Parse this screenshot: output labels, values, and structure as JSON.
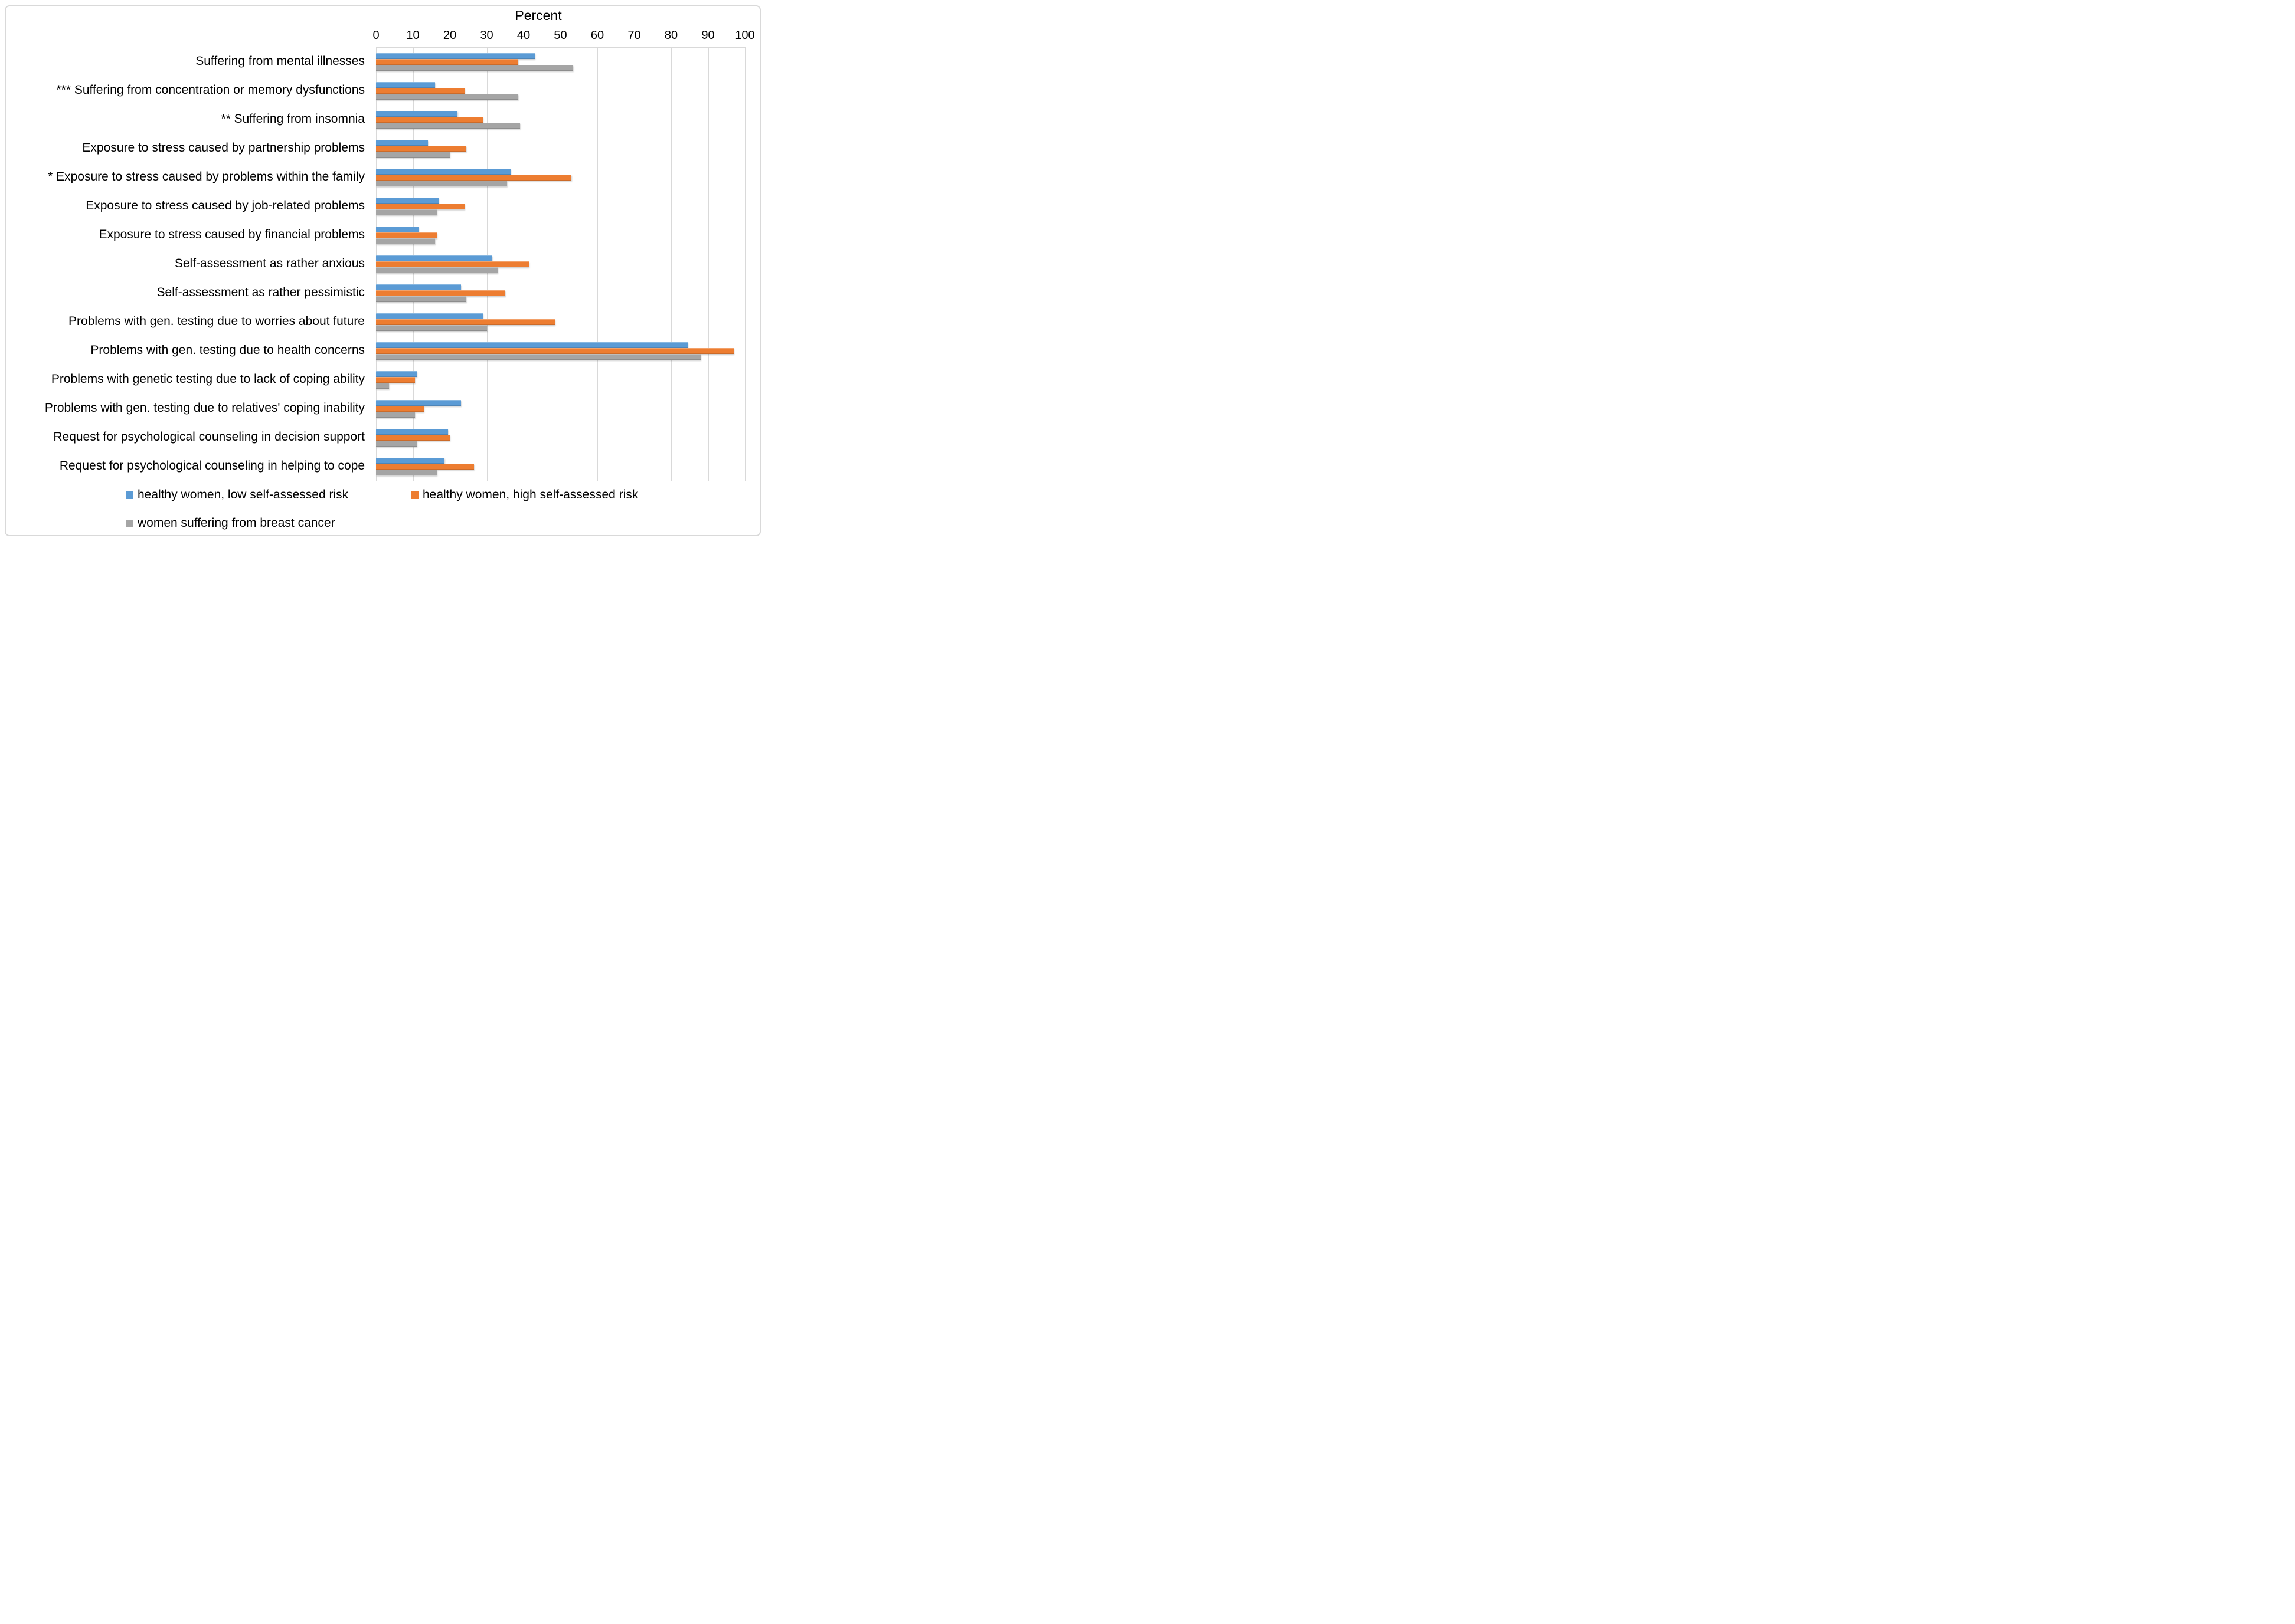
{
  "chart_data": {
    "type": "bar",
    "orientation": "horizontal",
    "axis": {
      "label": "Percent",
      "position": "top",
      "min": 0,
      "max": 100,
      "tick_step": 10,
      "tick_labels": [
        "0",
        "10",
        "20",
        "30",
        "40",
        "50",
        "60",
        "70",
        "80",
        "90",
        "100"
      ]
    },
    "grid": true,
    "gridline_color": "#D9D9D9",
    "background": "#FFFFFF",
    "legend_position": "bottom",
    "categories": [
      "Suffering from mental illnesses",
      "*** Suffering from concentration or memory dysfunctions",
      "** Suffering from  insomnia",
      "Exposure to stress caused by partnership problems",
      "* Exposure to stress caused by problems within the family",
      "Exposure to stress caused by job-related problems",
      "Exposure to stress caused by financial problems",
      "Self-assessment as rather anxious",
      "Self-assessment as rather pessimistic",
      "Problems with gen. testing due to worries about future",
      "Problems with gen. testing due to health concerns",
      "Problems with genetic testing due to lack of coping ability",
      "Problems with gen. testing due to relatives' coping inability",
      "Request for psychological counseling in decision support",
      "Request for psychological counseling in helping to cope"
    ],
    "series": [
      {
        "name": "healthy women, low self-assessed risk",
        "color": "#5B9BD5",
        "values": [
          43,
          16,
          22,
          14,
          36.5,
          17,
          11.5,
          31.5,
          23,
          29,
          84.5,
          11,
          23,
          19.5,
          18.5
        ]
      },
      {
        "name": "healthy women, high self-assessed risk",
        "color": "#ED7D31",
        "values": [
          38.5,
          24,
          29,
          24.5,
          53,
          24,
          16.5,
          41.5,
          35,
          48.5,
          97,
          10.5,
          13,
          20,
          26.5
        ]
      },
      {
        "name": "women suffering from breast cancer",
        "color": "#A5A5A5",
        "values": [
          53.5,
          38.5,
          39,
          20,
          35.5,
          16.5,
          16,
          33,
          24.5,
          30,
          88,
          3.5,
          10.5,
          11,
          16.5
        ]
      }
    ]
  }
}
